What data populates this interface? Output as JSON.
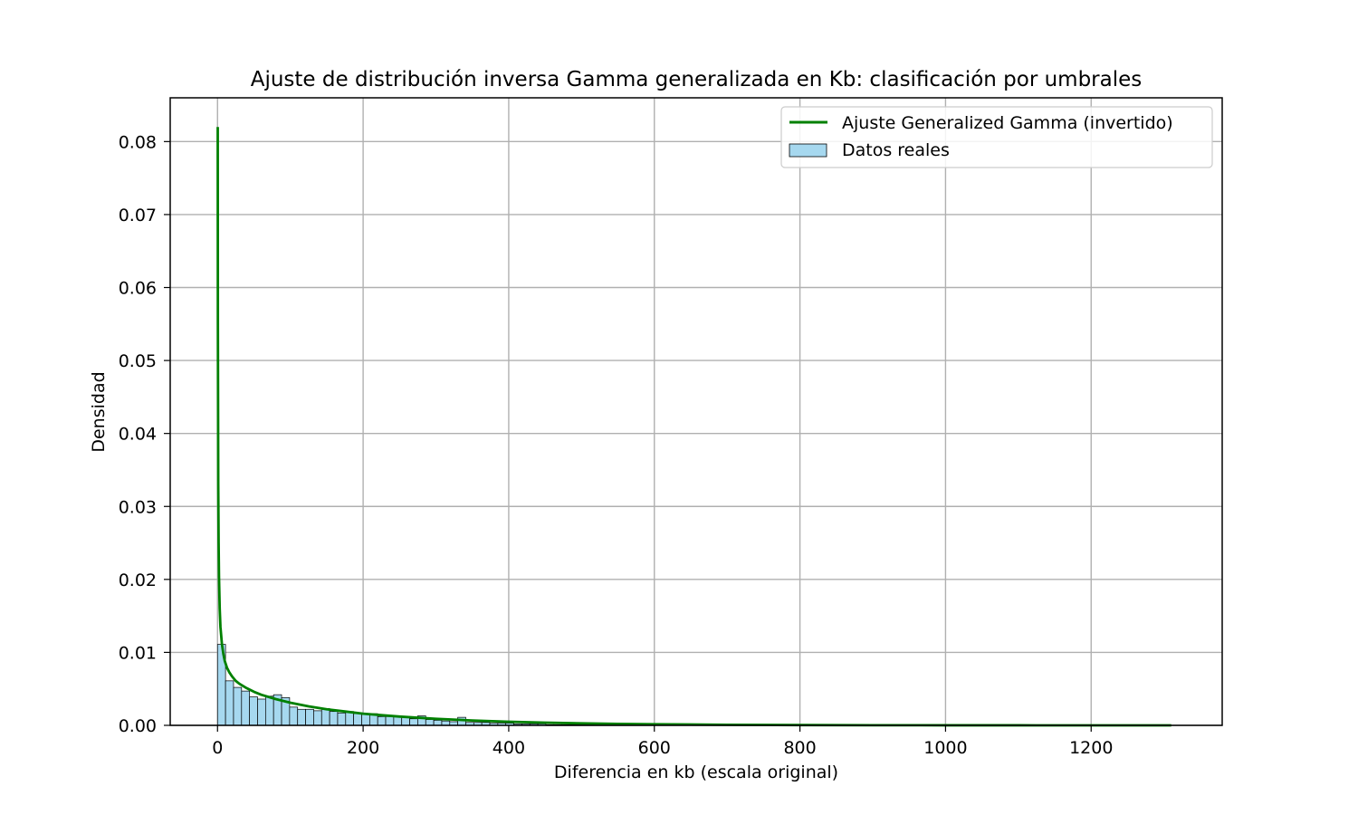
{
  "chart_data": {
    "type": "bar",
    "title": "Ajuste de distribución inversa Gamma generalizada en Kb: clasificación por umbrales",
    "xlabel": "Diferencia en kb (escala original)",
    "ylabel": "Densidad",
    "xlim": [
      -65,
      1380
    ],
    "ylim": [
      0,
      0.086
    ],
    "xticks": [
      0,
      200,
      400,
      600,
      800,
      1000,
      1200
    ],
    "xtick_labels": [
      "0",
      "200",
      "400",
      "600",
      "800",
      "1000",
      "1200"
    ],
    "yticks": [
      0.0,
      0.01,
      0.02,
      0.03,
      0.04,
      0.05,
      0.06,
      0.07,
      0.08
    ],
    "ytick_labels": [
      "0.00",
      "0.01",
      "0.02",
      "0.03",
      "0.04",
      "0.05",
      "0.06",
      "0.07",
      "0.08"
    ],
    "grid": true,
    "legend_position": "top-right",
    "colors": {
      "bars": "#a6d8ef",
      "bar_edge": "#000000",
      "line": "#008000",
      "grid": "#b0b0b0"
    },
    "series": [
      {
        "name": "Ajuste Generalized Gamma (invertido)",
        "type": "line",
        "x": [
          0.3,
          0.5,
          1,
          1.5,
          2,
          3,
          4,
          6,
          8,
          10,
          13,
          16,
          20,
          25,
          30,
          40,
          50,
          60,
          80,
          100,
          125,
          150,
          175,
          200,
          250,
          300,
          350,
          400,
          450,
          500,
          550,
          600,
          700,
          800,
          900,
          1000,
          1100,
          1200,
          1310
        ],
        "y": [
          0.082,
          0.055,
          0.033,
          0.025,
          0.0205,
          0.016,
          0.0135,
          0.0112,
          0.0098,
          0.0088,
          0.0079,
          0.0073,
          0.0067,
          0.0061,
          0.0057,
          0.0051,
          0.0046,
          0.0042,
          0.0036,
          0.0031,
          0.0026,
          0.0022,
          0.0019,
          0.0016,
          0.0012,
          0.0009,
          0.00067,
          0.0005,
          0.00037,
          0.00027,
          0.0002,
          0.00015,
          8e-05,
          4e-05,
          2e-05,
          1e-05,
          5e-06,
          2e-06,
          1e-06
        ]
      },
      {
        "name": "Datos reales",
        "type": "histogram",
        "bin_width": 11,
        "bin_starts": [
          0,
          11,
          22,
          33,
          44,
          55,
          66,
          77,
          88,
          99,
          110,
          121,
          132,
          143,
          154,
          165,
          176,
          187,
          198,
          209,
          220,
          231,
          242,
          253,
          264,
          275,
          286,
          297,
          308,
          319,
          330,
          341,
          352,
          363,
          374,
          385,
          396,
          407,
          418,
          429,
          440,
          451,
          462,
          473,
          484,
          495,
          506,
          517,
          528,
          539,
          550
        ],
        "values": [
          0.0111,
          0.0061,
          0.0052,
          0.0047,
          0.0039,
          0.0036,
          0.004,
          0.0042,
          0.0038,
          0.0025,
          0.0022,
          0.0022,
          0.002,
          0.0023,
          0.0019,
          0.0017,
          0.0019,
          0.0016,
          0.0015,
          0.0016,
          0.0012,
          0.0012,
          0.0013,
          0.0011,
          0.0009,
          0.0013,
          0.0008,
          0.0007,
          0.0006,
          0.0005,
          0.0011,
          0.0004,
          0.0004,
          0.0004,
          0.0003,
          0.0003,
          0.0003,
          0.0002,
          0.0002,
          0.0002,
          0.0002,
          0.0001,
          0.0001,
          0.0001,
          0.0001,
          0.0001,
          0.0001,
          5e-05,
          5e-05,
          5e-05,
          5e-05
        ]
      }
    ]
  }
}
